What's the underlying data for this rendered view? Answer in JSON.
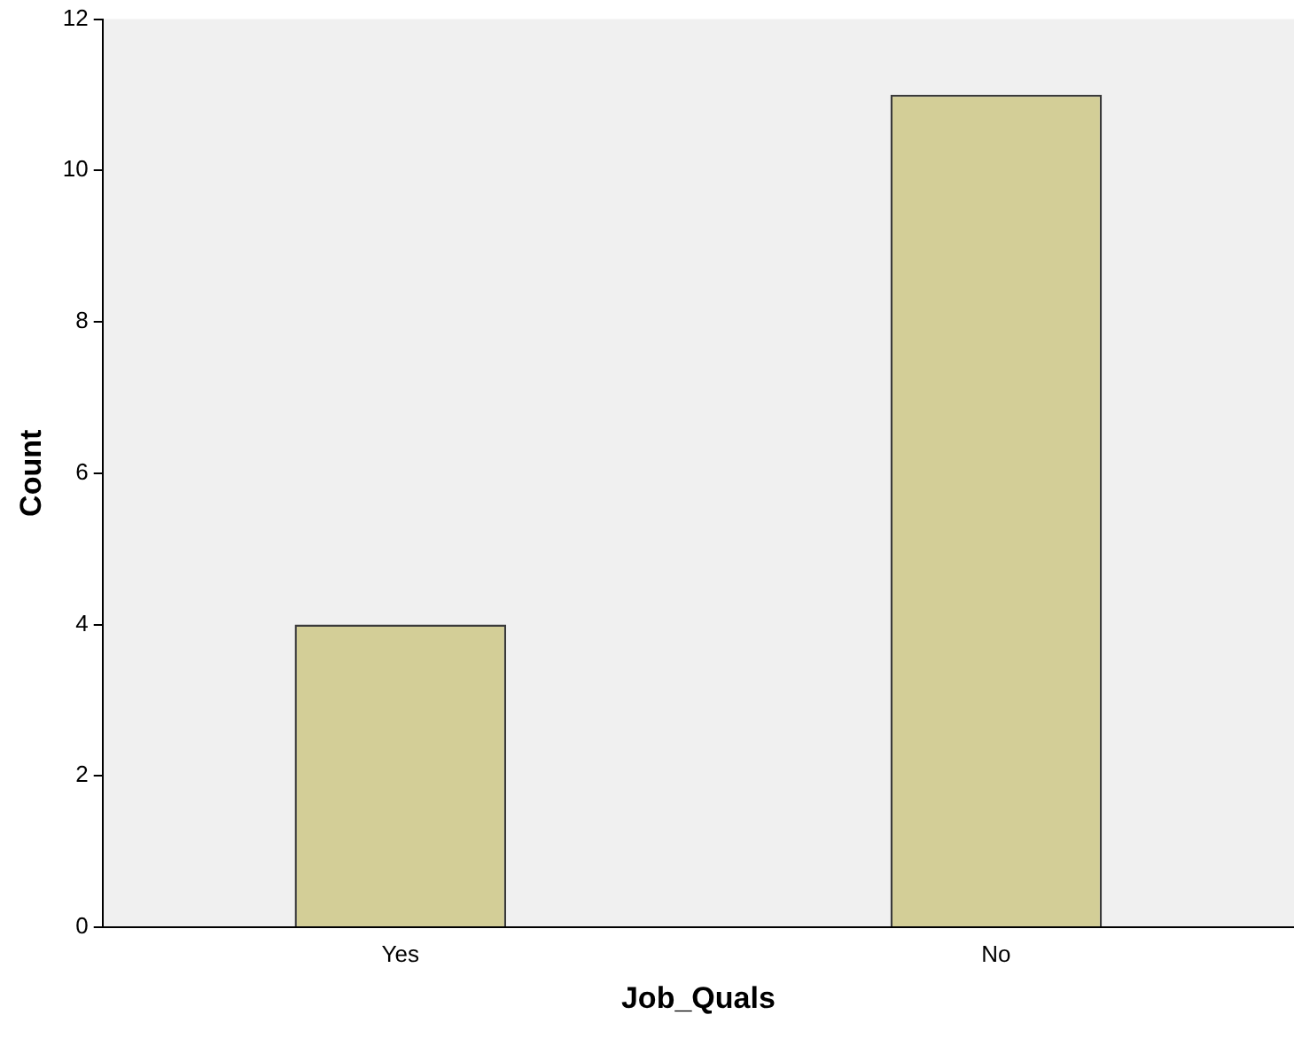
{
  "chart_data": {
    "type": "bar",
    "xlabel": "Job_Quals",
    "ylabel": "Count",
    "categories": [
      "Yes",
      "No"
    ],
    "values": [
      4,
      11
    ],
    "color": "#d3ce97",
    "ylim": [
      0,
      12
    ],
    "yticks": [
      0,
      2,
      4,
      6,
      8,
      10,
      12
    ],
    "grid": false,
    "legend": false
  }
}
